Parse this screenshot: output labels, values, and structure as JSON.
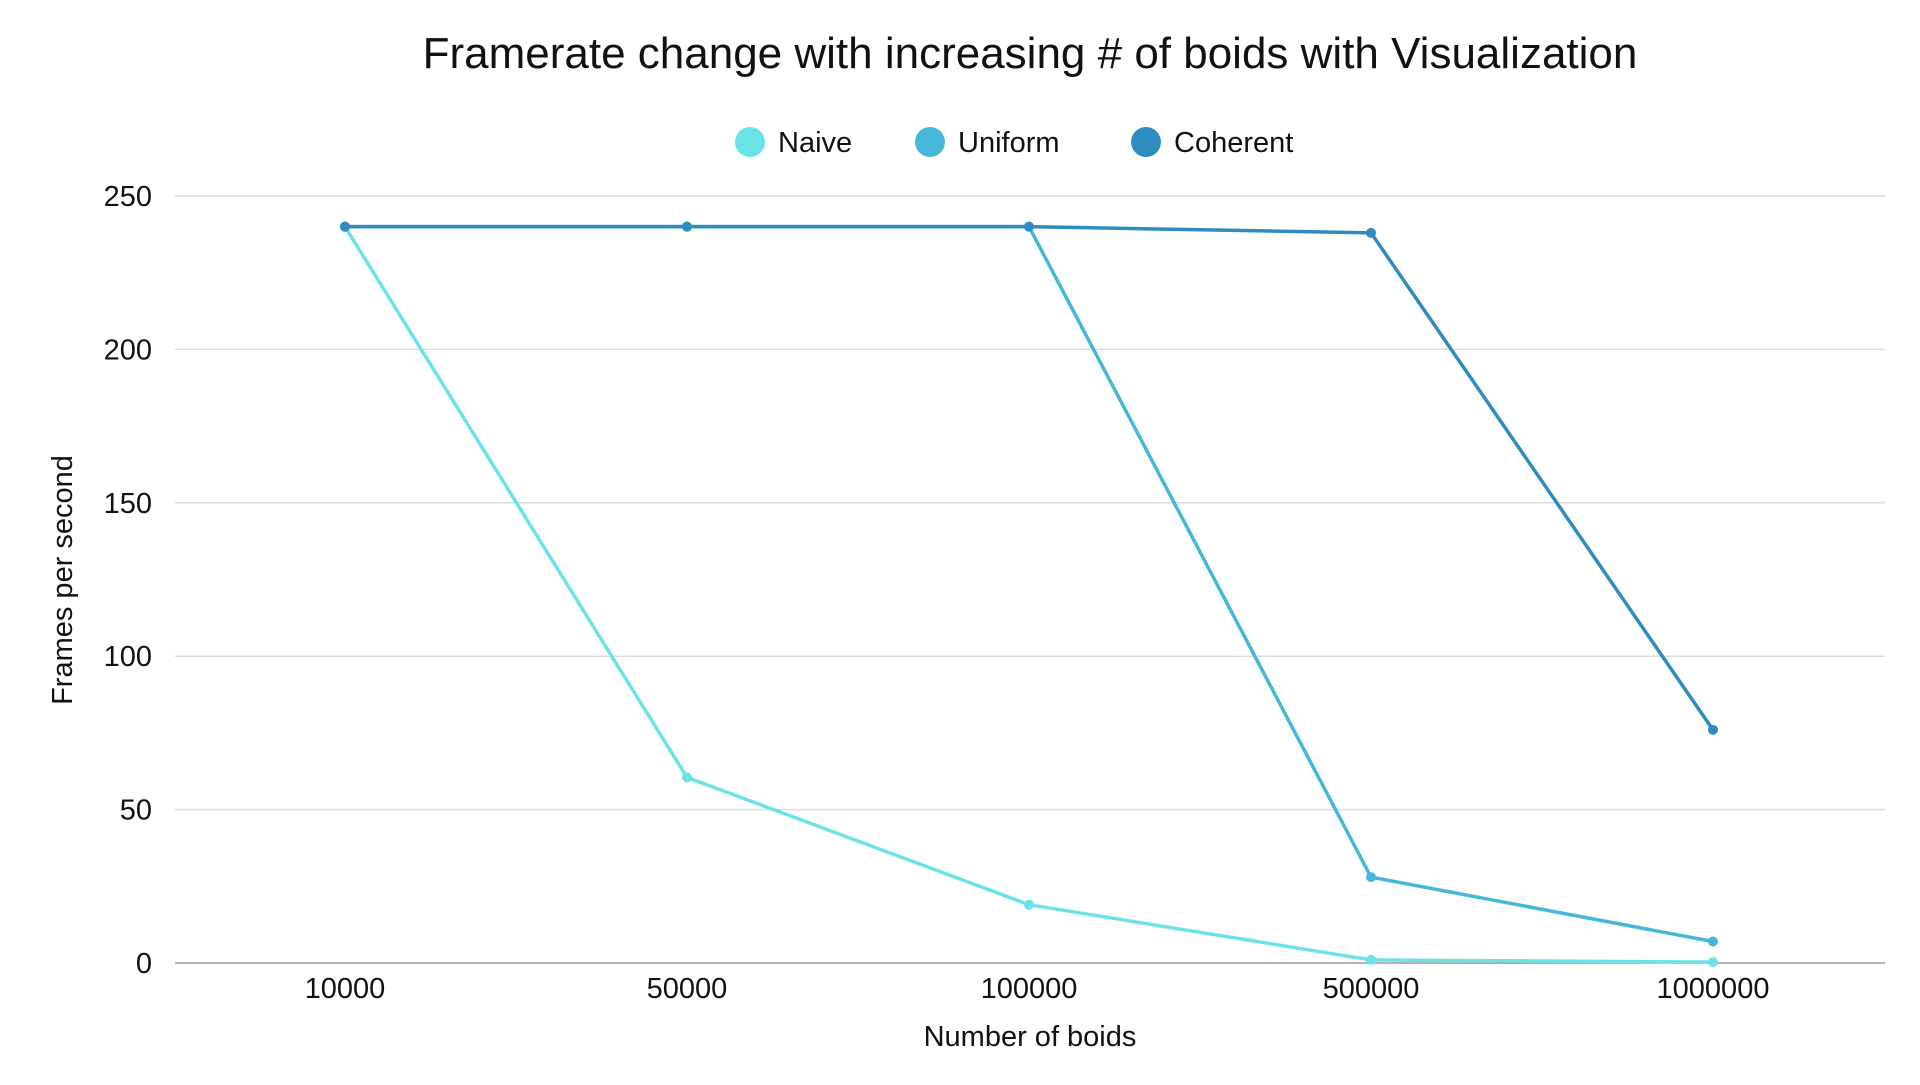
{
  "chart_data": {
    "type": "line",
    "title": "Framerate change with increasing # of boids with Visualization",
    "xlabel": "Number of boids",
    "ylabel": "Frames per second",
    "categories": [
      "10000",
      "50000",
      "100000",
      "500000",
      "1000000"
    ],
    "ylim": [
      0,
      250
    ],
    "yticks": [
      0,
      50,
      100,
      150,
      200,
      250
    ],
    "grid": true,
    "legend_position": "top-center",
    "series": [
      {
        "name": "Naive",
        "color": "#6ae3e8",
        "values": [
          240,
          60.5,
          19,
          1,
          0.3
        ]
      },
      {
        "name": "Uniform",
        "color": "#45b8da",
        "values": [
          240,
          240,
          240,
          28,
          7
        ]
      },
      {
        "name": "Coherent",
        "color": "#2e8dbe",
        "values": [
          240,
          240,
          240,
          238,
          76
        ]
      }
    ]
  }
}
